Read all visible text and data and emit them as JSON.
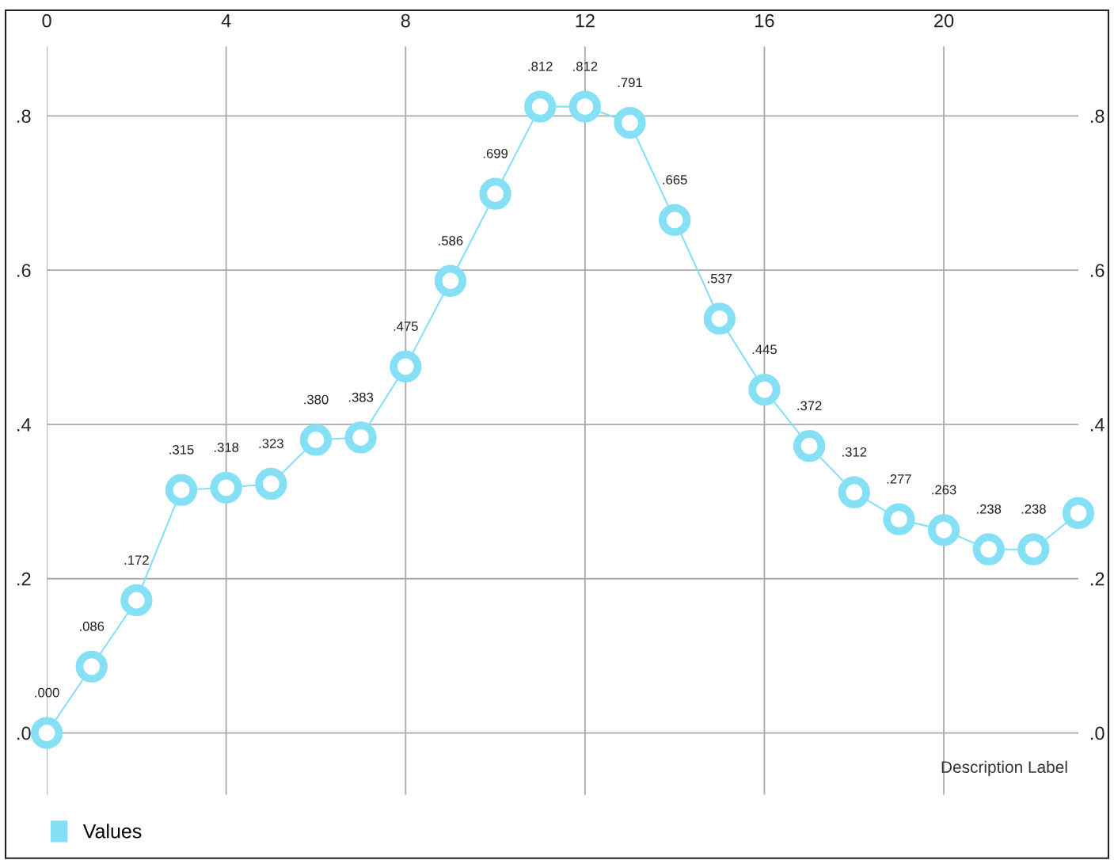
{
  "chart_data": {
    "type": "line",
    "x": [
      0,
      1,
      2,
      3,
      4,
      5,
      6,
      7,
      8,
      9,
      10,
      11,
      12,
      13,
      14,
      15,
      16,
      17,
      18,
      19,
      20,
      21,
      22,
      23
    ],
    "series": [
      {
        "name": "Values",
        "color": "#86e0f5",
        "values": [
          0.0,
          0.086,
          0.172,
          0.315,
          0.318,
          0.323,
          0.38,
          0.383,
          0.475,
          0.586,
          0.699,
          0.812,
          0.812,
          0.791,
          0.665,
          0.537,
          0.445,
          0.372,
          0.312,
          0.277,
          0.263,
          0.238,
          0.238,
          0.285
        ],
        "value_labels": [
          ".000",
          ".086",
          ".172",
          ".315",
          ".318",
          ".323",
          ".380",
          ".383",
          ".475",
          ".586",
          ".699",
          ".812",
          ".812",
          ".791",
          ".665",
          ".537",
          ".445",
          ".372",
          ".312",
          ".277",
          ".263",
          ".238",
          ".238",
          null
        ]
      }
    ],
    "xlim": [
      0,
      23
    ],
    "xticks": [
      0,
      4,
      8,
      12,
      16,
      20
    ],
    "ylim": [
      -0.08,
      0.89
    ],
    "yticks": [
      {
        "value": 0.0,
        "label": ".0"
      },
      {
        "value": 0.2,
        "label": ".2"
      },
      {
        "value": 0.4,
        "label": ".4"
      },
      {
        "value": 0.6,
        "label": ".6"
      },
      {
        "value": 0.8,
        "label": ".8"
      }
    ],
    "y2lim": [
      -0.08,
      0.89
    ],
    "y2ticks": [
      {
        "value": 0.0,
        "label": ".0"
      },
      {
        "value": 0.2,
        "label": ".2"
      },
      {
        "value": 0.4,
        "label": ".4"
      },
      {
        "value": 0.6,
        "label": ".6"
      },
      {
        "value": 0.8,
        "label": ".8"
      }
    ],
    "annotations": [
      "Description Label"
    ],
    "grid": true,
    "legend": "bottom left",
    "marker": "circle",
    "line_style": "solid"
  }
}
